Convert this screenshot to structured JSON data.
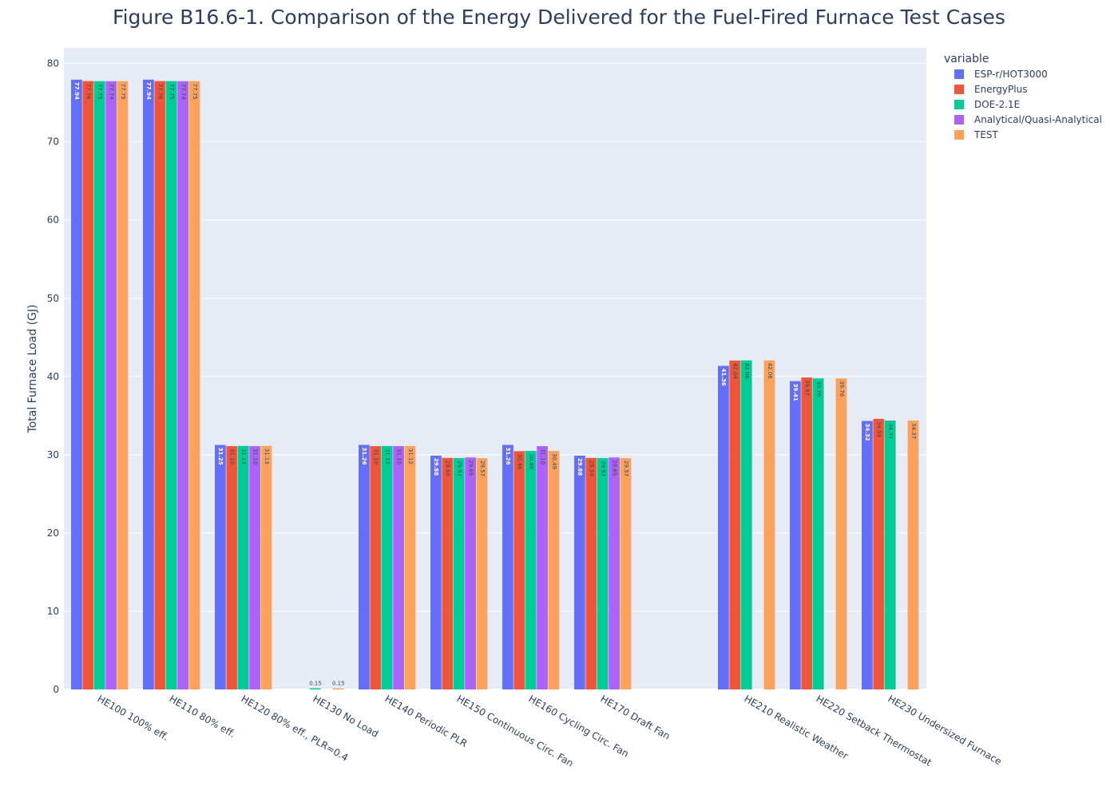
{
  "chart_data": {
    "type": "bar",
    "title": "Figure B16.6-1. Comparison of the Energy Delivered for the Fuel-Fired Furnace Test Cases",
    "xlabel": "",
    "ylabel": "Total Furnace Load (GJ)",
    "ylim": [
      0,
      82
    ],
    "yticks": [
      0,
      10,
      20,
      30,
      40,
      50,
      60,
      70,
      80
    ],
    "grid": true,
    "legend_title": "variable",
    "legend_position": "top-right",
    "categories": [
      "HE100 100% eff.",
      "HE110 80% eff.",
      "HE120 80% eff., PLR=0.4",
      "HE130 No Load",
      "HE140 Periodic PLR",
      "HE150 Continuous Circ. Fan",
      "HE160 Cycling Circ. Fan",
      "HE170 Draft Fan",
      "",
      "HE210 Realistic Weather",
      "HE220 Setback Thermostat",
      "HE230 Undersized Furnace"
    ],
    "series": [
      {
        "name": "ESP-r/HOT3000",
        "color": "#636efa",
        "label_color": "#ffffff",
        "values": [
          77.94,
          77.94,
          31.25,
          null,
          31.26,
          29.88,
          31.26,
          29.88,
          null,
          41.36,
          39.41,
          34.32
        ],
        "labels": [
          "77.94",
          "77.94",
          "31.25",
          "",
          "31.26",
          "29.88",
          "31.26",
          "29.88",
          "",
          "41.36",
          "39.41",
          "34.32"
        ]
      },
      {
        "name": "EnergyPlus",
        "color": "#ef553b",
        "label_color": "#444444",
        "values": [
          77.76,
          77.76,
          31.1,
          null,
          31.1,
          29.6,
          30.46,
          29.59,
          null,
          42.04,
          39.87,
          34.59
        ],
        "labels": [
          "77.76",
          "77.76",
          "31.10",
          "",
          "31.10",
          "29.60",
          "30.46",
          "29.59",
          "",
          "42.04",
          "39.87",
          "34.59"
        ]
      },
      {
        "name": "DOE-2.1E",
        "color": "#00cc96",
        "label_color": "#444444",
        "values": [
          77.75,
          77.75,
          31.13,
          0.15,
          31.12,
          29.57,
          30.49,
          29.57,
          null,
          42.06,
          39.76,
          34.37
        ],
        "labels": [
          "77.75",
          "77.75",
          "31.13",
          "0.15",
          "31.12",
          "29.57",
          "30.49",
          "29.57",
          "",
          "42.06",
          "39.76",
          "34.37"
        ]
      },
      {
        "name": "Analytical/Quasi-Analytical",
        "color": "#ab63fa",
        "label_color": "#444444",
        "values": [
          77.74,
          77.74,
          31.1,
          null,
          31.1,
          29.65,
          31.1,
          29.65,
          null,
          null,
          null,
          null
        ],
        "labels": [
          "77.74",
          "77.74",
          "31.10",
          "",
          "31.10",
          "29.65",
          "31.10",
          "29.65",
          "",
          "",
          "",
          ""
        ]
      },
      {
        "name": "TEST",
        "color": "#ffa15a",
        "label_color": "#444444",
        "values": [
          77.75,
          77.75,
          31.13,
          0.15,
          31.12,
          29.57,
          30.49,
          29.57,
          null,
          42.06,
          39.76,
          34.37
        ],
        "labels": [
          "77.75",
          "77.75",
          "31.13",
          "0.15",
          "31.12",
          "29.57",
          "30.49",
          "29.57",
          "",
          "42.06",
          "39.76",
          "34.37"
        ]
      }
    ]
  }
}
